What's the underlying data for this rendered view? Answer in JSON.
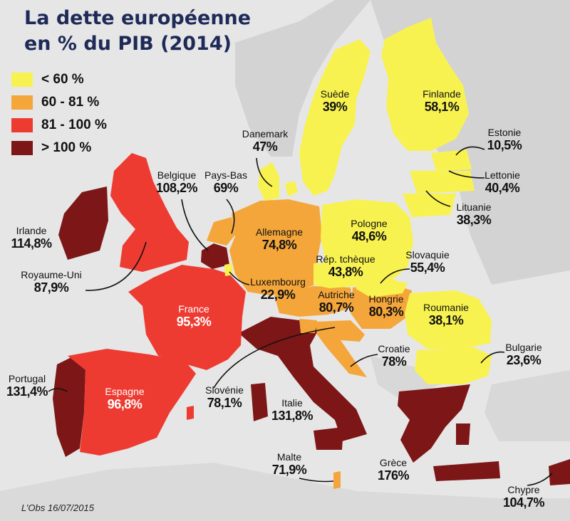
{
  "title_line1": "La dette européenne",
  "title_line2": "en % du PIB (2014)",
  "legend": [
    {
      "label": "< 60 %",
      "color": "#f8f250"
    },
    {
      "label": "60 - 81 %",
      "color": "#f4a63a"
    },
    {
      "label": "81 - 100 %",
      "color": "#ee3b32"
    },
    {
      "label": "> 100 %",
      "color": "#7d1616"
    }
  ],
  "countries": {
    "suede": {
      "name": "Suède",
      "value": "39%"
    },
    "finlande": {
      "name": "Finlande",
      "value": "58,1%"
    },
    "danemark": {
      "name": "Danemark",
      "value": "47%"
    },
    "estonie": {
      "name": "Estonie",
      "value": "10,5%"
    },
    "lettonie": {
      "name": "Lettonie",
      "value": "40,4%"
    },
    "lituanie": {
      "name": "Lituanie",
      "value": "38,3%"
    },
    "belgique": {
      "name": "Belgique",
      "value": "108,2%"
    },
    "paysbas": {
      "name": "Pays-Bas",
      "value": "69%"
    },
    "irlande": {
      "name": "Irlande",
      "value": "114,8%"
    },
    "allemagne": {
      "name": "Allemagne",
      "value": "74,8%"
    },
    "pologne": {
      "name": "Pologne",
      "value": "48,6%"
    },
    "royaumeuni": {
      "name": "Royaume-Uni",
      "value": "87,9%"
    },
    "tcheque": {
      "name": "Rép. tchèque",
      "value": "43,8%"
    },
    "slovaquie": {
      "name": "Slovaquie",
      "value": "55,4%"
    },
    "luxembourg": {
      "name": "Luxembourg",
      "value": "22,9%"
    },
    "france": {
      "name": "France",
      "value": "95,3%"
    },
    "autriche": {
      "name": "Autriche",
      "value": "80,7%"
    },
    "hongrie": {
      "name": "Hongrie",
      "value": "80,3%"
    },
    "roumanie": {
      "name": "Roumanie",
      "value": "38,1%"
    },
    "croatie": {
      "name": "Croatie",
      "value": "78%"
    },
    "bulgarie": {
      "name": "Bulgarie",
      "value": "23,6%"
    },
    "portugal": {
      "name": "Portugal",
      "value": "131,4%"
    },
    "espagne": {
      "name": "Espagne",
      "value": "96,8%"
    },
    "slovenie": {
      "name": "Slovénie",
      "value": "78,1%"
    },
    "italie": {
      "name": "Italie",
      "value": "131,8%"
    },
    "malte": {
      "name": "Malte",
      "value": "71,9%"
    },
    "grece": {
      "name": "Grèce",
      "value": "176%"
    },
    "chypre": {
      "name": "Chypre",
      "value": "104,7%"
    }
  },
  "credit": "L’Obs 16/07/2015"
}
